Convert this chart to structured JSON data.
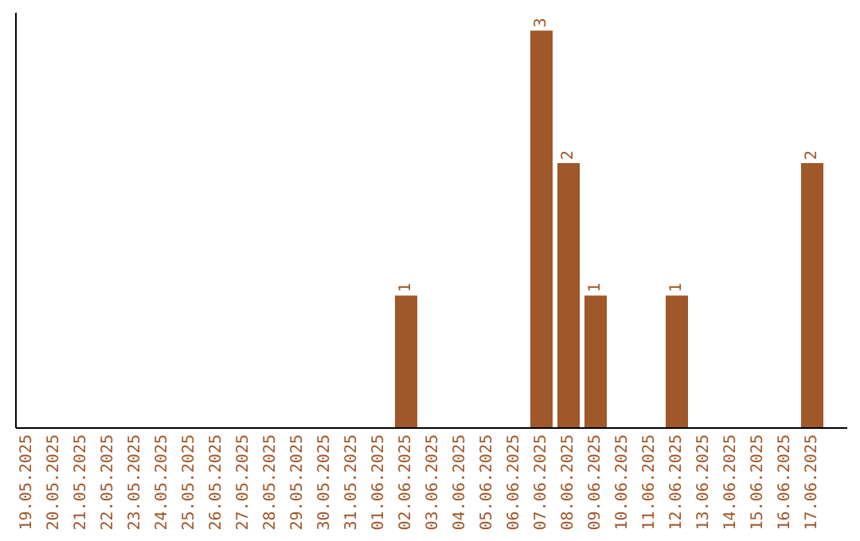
{
  "chart_data": {
    "type": "bar",
    "categories": [
      "19.05.2025",
      "20.05.2025",
      "21.05.2025",
      "22.05.2025",
      "23.05.2025",
      "24.05.2025",
      "25.05.2025",
      "26.05.2025",
      "27.05.2025",
      "28.05.2025",
      "29.05.2025",
      "30.05.2025",
      "31.05.2025",
      "01.06.2025",
      "02.06.2025",
      "03.06.2025",
      "04.06.2025",
      "05.06.2025",
      "06.06.2025",
      "07.06.2025",
      "08.06.2025",
      "09.06.2025",
      "10.06.2025",
      "11.06.2025",
      "12.06.2025",
      "13.06.2025",
      "14.06.2025",
      "15.06.2025",
      "16.06.2025",
      "17.06.2025"
    ],
    "values": [
      null,
      null,
      null,
      null,
      null,
      null,
      null,
      null,
      null,
      null,
      null,
      null,
      null,
      null,
      1,
      null,
      null,
      null,
      null,
      3,
      2,
      1,
      null,
      null,
      1,
      null,
      null,
      null,
      null,
      2
    ],
    "value_labels": [
      null,
      null,
      null,
      null,
      null,
      null,
      null,
      null,
      null,
      null,
      null,
      null,
      null,
      null,
      "1",
      null,
      null,
      null,
      null,
      "3",
      "2",
      "1",
      null,
      null,
      "1",
      null,
      null,
      null,
      null,
      "2"
    ],
    "color": "#a0572a",
    "tick_labels": "x",
    "grid": false
  }
}
